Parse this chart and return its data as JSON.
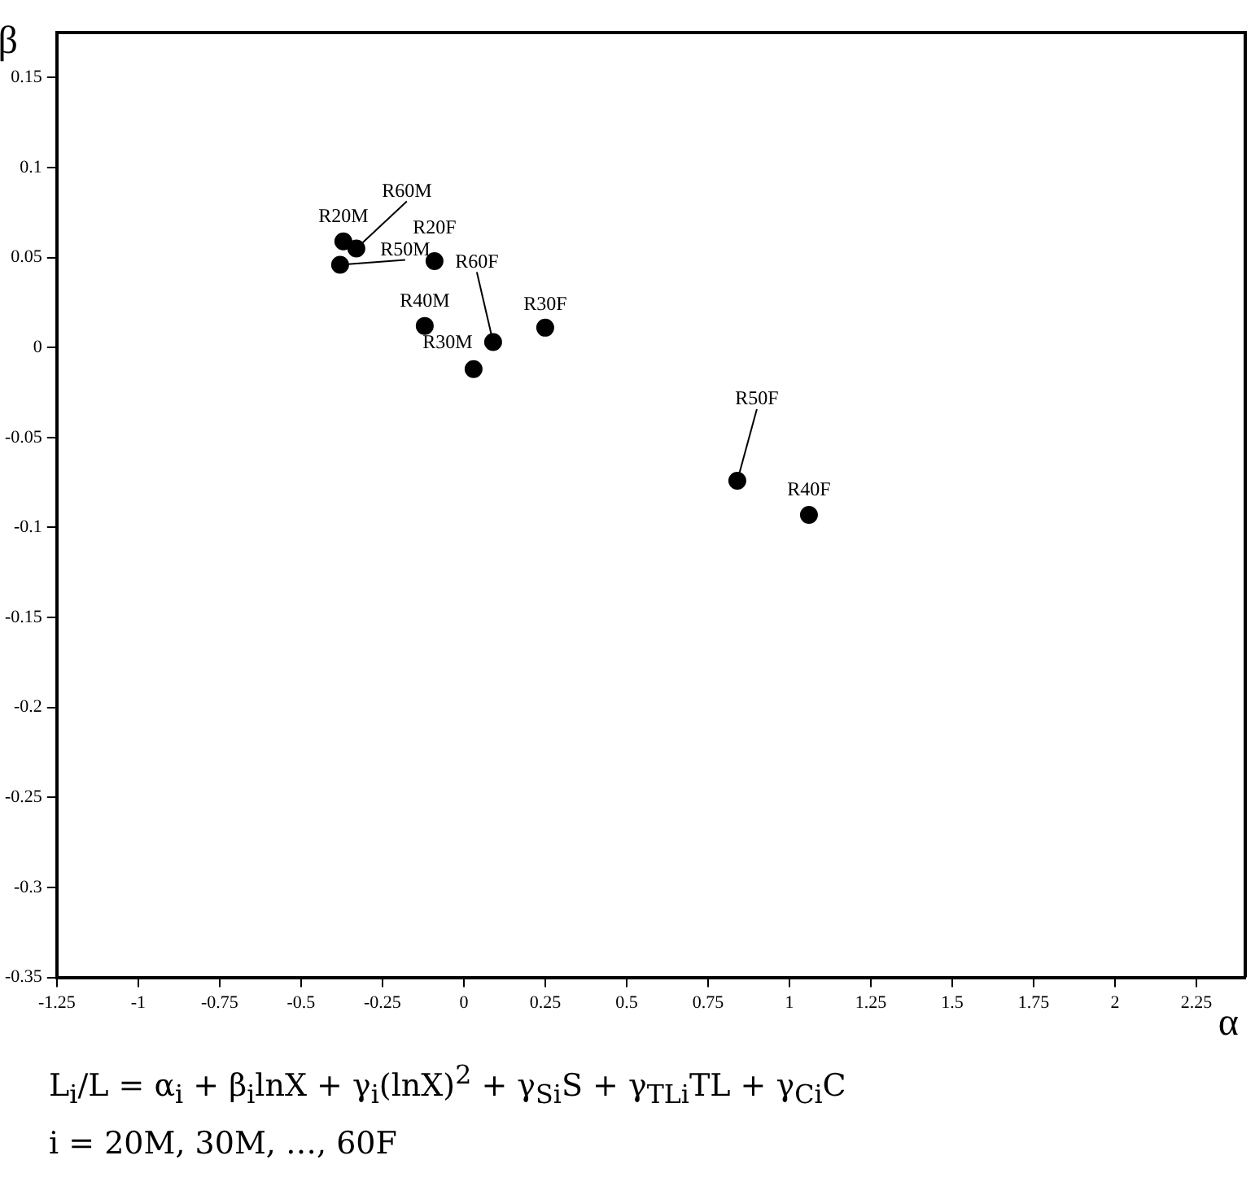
{
  "chart_data": {
    "type": "scatter",
    "xlabel": "α",
    "ylabel": "β",
    "x": [
      -0.33,
      -0.37,
      -0.38,
      -0.09,
      0.09,
      -0.12,
      0.25,
      0.03,
      0.84,
      1.06
    ],
    "values": [
      0.055,
      0.059,
      0.046,
      0.048,
      0.003,
      0.012,
      0.011,
      -0.012,
      -0.074,
      -0.093
    ],
    "color": "#000000",
    "marker": "circle",
    "grid": false,
    "legend": false,
    "xlim": [
      -1.25,
      2.4
    ],
    "xticks": [
      -1.25,
      -1,
      -0.75,
      -0.5,
      -0.25,
      0,
      0.25,
      0.5,
      0.75,
      1,
      1.25,
      1.5,
      1.75,
      2,
      2.25
    ],
    "ylim": [
      -0.35,
      0.175
    ],
    "yticks": [
      0.15,
      0.1,
      0.05,
      0,
      -0.05,
      -0.1,
      -0.15,
      -0.2,
      -0.25,
      -0.3,
      -0.35
    ],
    "annotations": [
      {
        "text": "R60M",
        "x": -0.33,
        "y": 0.055
      },
      {
        "text": "R20M",
        "x": -0.37,
        "y": 0.059
      },
      {
        "text": "R50M",
        "x": -0.38,
        "y": 0.046
      },
      {
        "text": "R20F",
        "x": -0.09,
        "y": 0.048
      },
      {
        "text": "R60F",
        "x": 0.09,
        "y": 0.003
      },
      {
        "text": "R40M",
        "x": -0.12,
        "y": 0.012
      },
      {
        "text": "R30F",
        "x": 0.25,
        "y": 0.011
      },
      {
        "text": "R30M",
        "x": 0.03,
        "y": -0.012
      },
      {
        "text": "R50F",
        "x": 0.84,
        "y": -0.074
      },
      {
        "text": "R40F",
        "x": 1.06,
        "y": -0.093
      },
      "L$_{i}$/L = α$_{i}$ + β$_{i}$lnX + γ$_{i}$(lnX)$^{2}$ + γ$_{Si}$S + γ$_{TLi}$TL + γ$_{Ci}$C",
      "i = 20M, 30M, …, 60F"
    ]
  }
}
